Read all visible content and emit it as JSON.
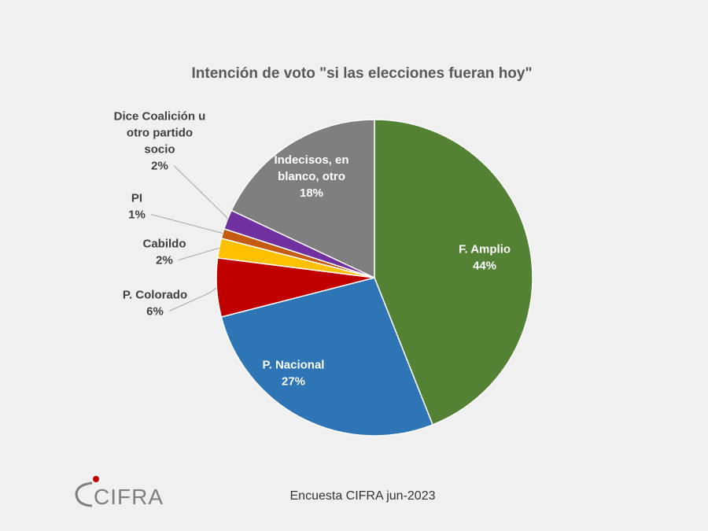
{
  "chart_data": {
    "type": "pie",
    "title": "Intención de voto \"si las elecciones fueran hoy\"",
    "slices": [
      {
        "label_lines": [
          "F. Amplio"
        ],
        "pct_label": "44%",
        "value": 44,
        "color": "#548235"
      },
      {
        "label_lines": [
          "P. Nacional"
        ],
        "pct_label": "27%",
        "value": 27,
        "color": "#2e75b6"
      },
      {
        "label_lines": [
          "P. Colorado"
        ],
        "pct_label": "6%",
        "value": 6,
        "color": "#c00000"
      },
      {
        "label_lines": [
          "Cabildo"
        ],
        "pct_label": "2%",
        "value": 2,
        "color": "#ffc000"
      },
      {
        "label_lines": [
          "PI"
        ],
        "pct_label": "1%",
        "value": 1,
        "color": "#c55a11"
      },
      {
        "label_lines": [
          "Dice Coalición u",
          "otro partido",
          "socio"
        ],
        "pct_label": "2%",
        "value": 2,
        "color": "#7030a0"
      },
      {
        "label_lines": [
          "Indecisos, en",
          "blanco, otro"
        ],
        "pct_label": "18%",
        "value": 18,
        "color": "#7f7f7f"
      }
    ]
  },
  "footer": {
    "source": "Encuesta CIFRA jun-2023",
    "logo_text": "CIFRA",
    "logo_accent": "#c00000"
  }
}
